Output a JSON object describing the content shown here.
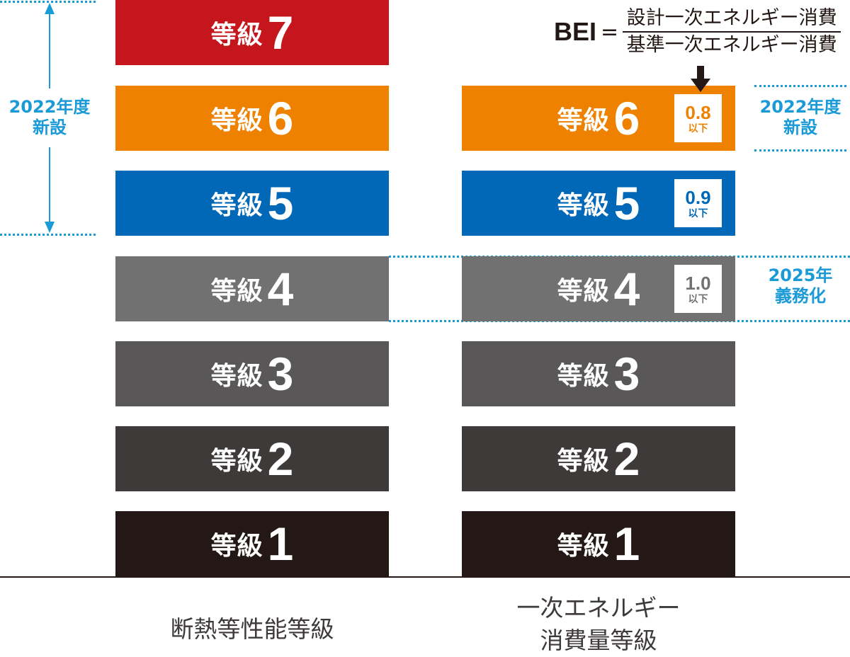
{
  "colors": {
    "accent": "#1a9ad6"
  },
  "left": {
    "caption": "断熱等性能等級",
    "grades": [
      {
        "label": "等級",
        "num": "7",
        "color": "#c4161c"
      },
      {
        "label": "等級",
        "num": "6",
        "color": "#ee8100"
      },
      {
        "label": "等級",
        "num": "5",
        "color": "#0068b7"
      },
      {
        "label": "等級",
        "num": "4",
        "color": "#727171"
      },
      {
        "label": "等級",
        "num": "3",
        "color": "#595757"
      },
      {
        "label": "等級",
        "num": "2",
        "color": "#3e3a39"
      },
      {
        "label": "等級",
        "num": "1",
        "color": "#231815"
      }
    ],
    "note": {
      "line1": "2022年度",
      "line2": "新設"
    }
  },
  "right": {
    "caption_line1": "一次エネルギー",
    "caption_line2": "消費量等級",
    "grades": [
      {
        "label": "等級",
        "num": "6",
        "color": "#ee8100",
        "bei": "0.8",
        "bei_unit": "以下"
      },
      {
        "label": "等級",
        "num": "5",
        "color": "#0068b7",
        "bei": "0.9",
        "bei_unit": "以下"
      },
      {
        "label": "等級",
        "num": "4",
        "color": "#727171",
        "bei": "1.0",
        "bei_unit": "以下"
      },
      {
        "label": "等級",
        "num": "3",
        "color": "#595757"
      },
      {
        "label": "等級",
        "num": "2",
        "color": "#3e3a39"
      },
      {
        "label": "等級",
        "num": "1",
        "color": "#231815"
      }
    ],
    "note2022": {
      "line1": "2022年度",
      "line2": "新設"
    },
    "note2025": {
      "line1": "2025年",
      "line2": "義務化"
    }
  },
  "formula": {
    "lhs": "BEI",
    "eq": "=",
    "numerator": "設計一次エネルギー消費",
    "denominator": "基準一次エネルギー消費"
  }
}
